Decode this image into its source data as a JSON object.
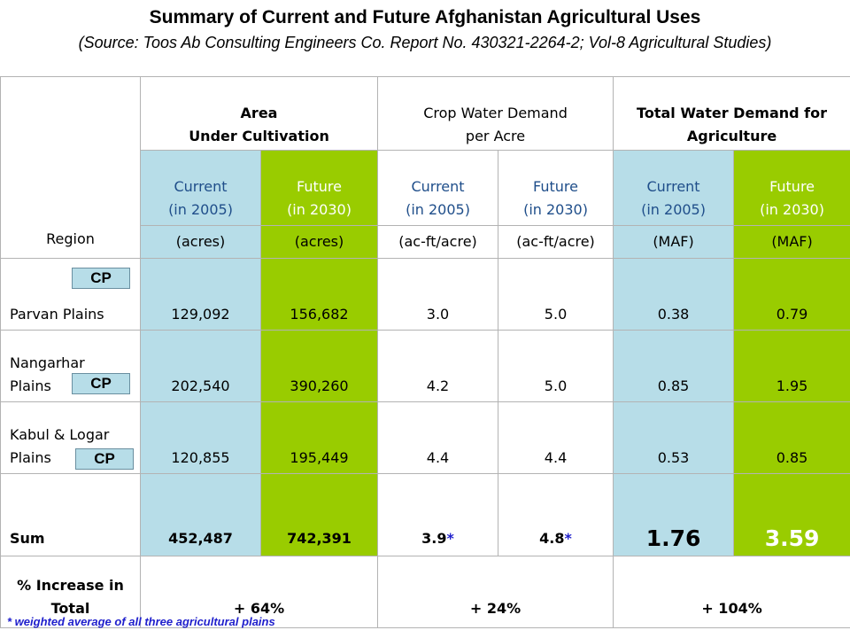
{
  "title": "Summary of Current and Future Afghanistan Agricultural Uses",
  "subtitle": "(Source: Toos Ab Consulting Engineers Co. Report No. 430321-2264-2; Vol-8 Agricultural Studies)",
  "headers": {
    "region": "Region",
    "area_line1": "Area",
    "area_line2": "Under Cultivation",
    "crop_line1": "Crop Water Demand",
    "crop_line2": "per Acre",
    "total_line1": "Total Water Demand for",
    "total_line2": "Agriculture",
    "current_line1": "Current",
    "current_line2": "(in 2005)",
    "future_line1": "Future",
    "future_line2": "(in 2030)",
    "unit_acres": "(acres)",
    "unit_acft": "(ac-ft/acre)",
    "unit_maf": "(MAF)"
  },
  "cp_label": "CP",
  "rows": [
    {
      "region_line1": "Parvan Plains",
      "region_line2": "",
      "area_current": "129,092",
      "area_future": "156,682",
      "crop_current": "3.0",
      "crop_future": "5.0",
      "total_current": "0.38",
      "total_future": "0.79"
    },
    {
      "region_line1": "Nangarhar",
      "region_line2": "Plains",
      "area_current": "202,540",
      "area_future": "390,260",
      "crop_current": "4.2",
      "crop_future": "5.0",
      "total_current": "0.85",
      "total_future": "1.95"
    },
    {
      "region_line1": "Kabul & Logar",
      "region_line2": "Plains",
      "area_current": "120,855",
      "area_future": "195,449",
      "crop_current": "4.4",
      "crop_future": "4.4",
      "total_current": "0.53",
      "total_future": "0.85"
    }
  ],
  "sum": {
    "label": "Sum",
    "area_current": "452,487",
    "area_future": "742,391",
    "crop_current": "3.9",
    "crop_future": "4.8",
    "star": "*",
    "total_current": "1.76",
    "total_future": "3.59"
  },
  "increase": {
    "label_line1": "% Increase in",
    "label_line2": "Total",
    "area": "+ 64%",
    "crop": "+ 24%",
    "total": "+ 104%"
  },
  "footnote": "* weighted average of all three agricultural plains",
  "colors": {
    "current_fill": "#b7dde8",
    "future_fill": "#99cc00",
    "star": "#1f1fcc"
  }
}
